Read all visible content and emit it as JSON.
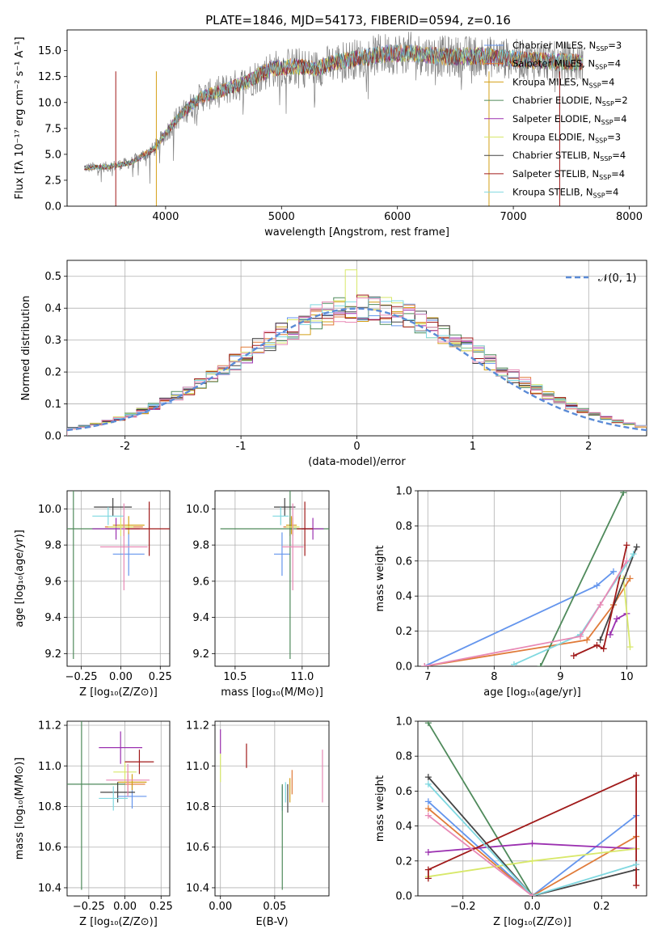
{
  "figure": {
    "title": "PLATE=1846, MJD=54173, FIBERID=0594, z=0.16"
  },
  "series": [
    {
      "key": "chab_miles",
      "label": "Chabrier MILES, N",
      "sub": "SSP",
      "suffix": "=3",
      "color": "#6495ed"
    },
    {
      "key": "salp_miles",
      "label": "Salpeter MILES, N",
      "sub": "SSP",
      "suffix": "=4",
      "color": "#e07b39"
    },
    {
      "key": "krou_miles",
      "label": "Kroupa MILES, N",
      "sub": "SSP",
      "suffix": "=4",
      "color": "#d4a017"
    },
    {
      "key": "chab_elodie",
      "label": "Chabrier ELODIE, N",
      "sub": "SSP",
      "suffix": "=2",
      "color": "#4f8a5b"
    },
    {
      "key": "salp_elodie",
      "label": "Salpeter ELODIE, N",
      "sub": "SSP",
      "suffix": "=4",
      "color": "#9b30b0"
    },
    {
      "key": "krou_elodie",
      "label": "Kroupa ELODIE, N",
      "sub": "SSP",
      "suffix": "=3",
      "color": "#d8e86a"
    },
    {
      "key": "chab_stelib",
      "label": "Chabrier STELIB, N",
      "sub": "SSP",
      "suffix": "=4",
      "color": "#444444"
    },
    {
      "key": "salp_stelib",
      "label": "Salpeter STELIB, N",
      "sub": "SSP",
      "suffix": "=4",
      "color": "#a01a1a"
    },
    {
      "key": "krou_stelib",
      "label": "Kroupa STELIB, N",
      "sub": "SSP",
      "suffix": "=4",
      "color": "#7fd8e0"
    }
  ],
  "chart_data": [
    {
      "id": "spectrum",
      "type": "line",
      "xlabel": "wavelength [Angstrom, rest frame]",
      "ylabel": "Flux [fλ 10⁻¹⁷ erg cm⁻² s⁻¹ A⁻¹]",
      "xlim": [
        3150,
        8150
      ],
      "ylim": [
        0,
        17
      ],
      "xticks": [
        4000,
        5000,
        6000,
        7000,
        8000
      ],
      "yticks": [
        0.0,
        2.5,
        5.0,
        7.5,
        10.0,
        12.5,
        15.0
      ],
      "x_data_range": [
        3300,
        7600
      ],
      "data_color": "#808080",
      "envelope": {
        "x": [
          3300,
          3500,
          3700,
          3900,
          4100,
          4300,
          4500,
          4700,
          4900,
          5100,
          5300,
          5500,
          5700,
          5900,
          6100,
          6300,
          6500,
          6700,
          6900,
          7100,
          7300,
          7500,
          7600
        ],
        "y": [
          3.7,
          3.8,
          4.2,
          5.5,
          8.5,
          10.5,
          11.2,
          12.0,
          13.2,
          13.5,
          13.3,
          14.0,
          14.3,
          14.7,
          14.8,
          14.5,
          14.4,
          14.5,
          14.3,
          14.1,
          14.0,
          13.9,
          13.8
        ]
      },
      "dropouts": [
        {
          "x": 3570,
          "key": "salp_stelib"
        },
        {
          "x": 3920,
          "key": "krou_miles"
        },
        {
          "x": 6790,
          "key": "krou_miles"
        },
        {
          "x": 7400,
          "key": "salp_stelib"
        }
      ]
    },
    {
      "id": "residuals",
      "type": "histogram",
      "xlabel": "(data-model)/error",
      "ylabel": "Normed distribution",
      "xlim": [
        -2.5,
        2.5
      ],
      "ylim": [
        0,
        0.55
      ],
      "xticks": [
        -2,
        -1,
        0,
        1,
        2
      ],
      "yticks": [
        0.0,
        0.1,
        0.2,
        0.3,
        0.4,
        0.5
      ],
      "bin_width": 0.1,
      "reference": {
        "label": "𝒩(0, 1)",
        "mean": 0,
        "sigma": 1,
        "color": "#5b8bd6"
      },
      "peak_bin": {
        "x": -0.05,
        "y": 0.52,
        "key": "krou_elodie"
      }
    },
    {
      "id": "age_vs_Z",
      "type": "errorbar",
      "xlabel": "Z [log₁₀(Z/Z⊙)]",
      "ylabel": "age  [log₁₀(age/yr)]",
      "xlim": [
        -0.34,
        0.31
      ],
      "ylim": [
        9.13,
        10.1
      ],
      "xticks": [
        -0.25,
        0.0,
        0.25
      ],
      "xticklabels": [
        "−0.25",
        "0.00",
        "0.25"
      ],
      "yticks": [
        9.2,
        9.4,
        9.6,
        9.8,
        10.0
      ],
      "points": [
        {
          "key": "chab_miles",
          "x": 0.05,
          "y": 9.75,
          "xerr": 0.1,
          "yerr": 0.12
        },
        {
          "key": "salp_miles",
          "x": 0.02,
          "y": 9.9,
          "xerr": 0.12,
          "yerr": 0.05
        },
        {
          "key": "krou_miles",
          "x": 0.05,
          "y": 9.91,
          "xerr": 0.1,
          "yerr": 0.05
        },
        {
          "key": "chab_elodie",
          "x": -0.3,
          "y": 9.89,
          "xerr": 0.3,
          "yerr": 0.72
        },
        {
          "key": "salp_elodie",
          "x": -0.03,
          "y": 9.89,
          "xerr": 0.15,
          "yerr": 0.06
        },
        {
          "key": "krou_elodie",
          "x": 0.0,
          "y": 9.9,
          "xerr": 0.08,
          "yerr": 0.05
        },
        {
          "key": "chab_stelib",
          "x": -0.05,
          "y": 10.01,
          "xerr": 0.12,
          "yerr": 0.05
        },
        {
          "key": "salp_stelib",
          "x": 0.18,
          "y": 9.89,
          "xerr": 0.15,
          "yerr": 0.15
        },
        {
          "key": "krou_stelib",
          "x": -0.08,
          "y": 9.96,
          "xerr": 0.1,
          "yerr": 0.05
        },
        {
          "key": "pink",
          "x": 0.02,
          "y": 9.79,
          "xerr": 0.15,
          "yerr": 0.24
        }
      ]
    },
    {
      "id": "age_vs_mass",
      "type": "errorbar",
      "xlabel": "mass [log₁₀(M/M⊙)]",
      "ylabel": "",
      "xlim": [
        10.35,
        11.2
      ],
      "ylim": [
        9.13,
        10.1
      ],
      "xticks": [
        10.5,
        11.0
      ],
      "xticklabels": [
        "10.5",
        "11.0"
      ],
      "yticks": [
        9.2,
        9.4,
        9.6,
        9.8,
        10.0
      ],
      "points": [
        {
          "key": "chab_miles",
          "x": 10.85,
          "y": 9.75,
          "xerr": 0.06,
          "yerr": 0.12
        },
        {
          "key": "salp_miles",
          "x": 10.91,
          "y": 9.9,
          "xerr": 0.05,
          "yerr": 0.05
        },
        {
          "key": "krou_miles",
          "x": 10.92,
          "y": 9.91,
          "xerr": 0.04,
          "yerr": 0.05
        },
        {
          "key": "chab_elodie",
          "x": 10.91,
          "y": 9.89,
          "xerr": 0.52,
          "yerr": 0.72
        },
        {
          "key": "salp_elodie",
          "x": 11.08,
          "y": 9.89,
          "xerr": 0.08,
          "yerr": 0.06
        },
        {
          "key": "krou_elodie",
          "x": 10.93,
          "y": 9.9,
          "xerr": 0.05,
          "yerr": 0.05
        },
        {
          "key": "chab_stelib",
          "x": 10.87,
          "y": 10.01,
          "xerr": 0.08,
          "yerr": 0.05
        },
        {
          "key": "salp_stelib",
          "x": 11.02,
          "y": 9.89,
          "xerr": 0.06,
          "yerr": 0.15
        },
        {
          "key": "krou_stelib",
          "x": 10.84,
          "y": 9.96,
          "xerr": 0.06,
          "yerr": 0.05
        },
        {
          "key": "pink",
          "x": 10.93,
          "y": 9.79,
          "xerr": 0.08,
          "yerr": 0.24
        }
      ]
    },
    {
      "id": "weight_vs_age",
      "type": "line",
      "xlabel": "age  [log₁₀(age/yr)]",
      "ylabel": "mass weight",
      "xlim": [
        6.85,
        10.3
      ],
      "ylim": [
        0,
        1.0
      ],
      "xticks": [
        7,
        8,
        9,
        10
      ],
      "yticks": [
        0.0,
        0.2,
        0.4,
        0.6,
        0.8,
        1.0
      ],
      "series": [
        {
          "key": "chab_miles",
          "x": [
            6.95,
            9.55,
            9.8
          ],
          "y": [
            0.0,
            0.46,
            0.54
          ]
        },
        {
          "key": "salp_miles",
          "x": [
            6.95,
            9.4,
            9.8,
            10.05
          ],
          "y": [
            0.0,
            0.15,
            0.35,
            0.5
          ]
        },
        {
          "key": "chab_elodie",
          "x": [
            8.7,
            9.95
          ],
          "y": [
            0.0,
            0.99
          ]
        },
        {
          "key": "salp_elodie",
          "x": [
            9.75,
            9.85,
            10.0
          ],
          "y": [
            0.18,
            0.27,
            0.3
          ]
        },
        {
          "key": "krou_elodie",
          "x": [
            9.95,
            10.05
          ],
          "y": [
            0.5,
            0.11
          ]
        },
        {
          "key": "chab_stelib",
          "x": [
            9.6,
            10.15
          ],
          "y": [
            0.15,
            0.68
          ]
        },
        {
          "key": "salp_stelib",
          "x": [
            9.2,
            9.55,
            9.65,
            10.0
          ],
          "y": [
            0.06,
            0.12,
            0.1,
            0.69
          ]
        },
        {
          "key": "krou_stelib",
          "x": [
            8.3,
            9.3,
            10.1
          ],
          "y": [
            0.01,
            0.18,
            0.64
          ]
        },
        {
          "key": "pink",
          "x": [
            6.95,
            9.3,
            9.6,
            10.0
          ],
          "y": [
            0.0,
            0.17,
            0.35,
            0.6
          ]
        }
      ]
    },
    {
      "id": "mass_vs_Z",
      "type": "errorbar",
      "xlabel": "Z [log₁₀(Z/Z⊙)]",
      "ylabel": "mass [log₁₀(M/M⊙)]",
      "xlim": [
        -0.4,
        0.31
      ],
      "ylim": [
        10.36,
        11.22
      ],
      "xticks": [
        -0.25,
        0.0,
        0.25
      ],
      "xticklabels": [
        "−0.25",
        "0.00",
        "0.25"
      ],
      "yticks": [
        10.4,
        10.6,
        10.8,
        11.0,
        11.2
      ],
      "points": [
        {
          "key": "chab_miles",
          "x": 0.05,
          "y": 10.85,
          "xerr": 0.1,
          "yerr": 0.06
        },
        {
          "key": "salp_miles",
          "x": 0.02,
          "y": 10.91,
          "xerr": 0.12,
          "yerr": 0.05
        },
        {
          "key": "krou_miles",
          "x": 0.05,
          "y": 10.92,
          "xerr": 0.1,
          "yerr": 0.04
        },
        {
          "key": "chab_elodie",
          "x": -0.3,
          "y": 10.91,
          "xerr": 0.3,
          "yerr": 0.52
        },
        {
          "key": "salp_elodie",
          "x": -0.03,
          "y": 11.09,
          "xerr": 0.15,
          "yerr": 0.08
        },
        {
          "key": "krou_elodie",
          "x": 0.0,
          "y": 10.97,
          "xerr": 0.08,
          "yerr": 0.05
        },
        {
          "key": "chab_stelib",
          "x": -0.05,
          "y": 10.87,
          "xerr": 0.12,
          "yerr": 0.05
        },
        {
          "key": "salp_stelib",
          "x": 0.1,
          "y": 11.02,
          "xerr": 0.1,
          "yerr": 0.06
        },
        {
          "key": "krou_stelib",
          "x": -0.08,
          "y": 10.84,
          "xerr": 0.1,
          "yerr": 0.06
        },
        {
          "key": "pink",
          "x": 0.02,
          "y": 10.93,
          "xerr": 0.15,
          "yerr": 0.08
        }
      ]
    },
    {
      "id": "mass_vs_ebv",
      "type": "errorbar",
      "xlabel": "E(B-V)",
      "ylabel": "",
      "xlim": [
        -0.005,
        0.1
      ],
      "ylim": [
        10.36,
        11.22
      ],
      "xticks": [
        0.0,
        0.05
      ],
      "xticklabels": [
        "0.00",
        "0.05"
      ],
      "yticks": [
        10.4,
        10.6,
        10.8,
        11.0,
        11.2
      ],
      "points": [
        {
          "key": "chab_miles",
          "x": 0.057,
          "y": 10.84,
          "xerr": 0,
          "yerr": 0.06
        },
        {
          "key": "salp_miles",
          "x": 0.066,
          "y": 10.92,
          "xerr": 0,
          "yerr": 0.06
        },
        {
          "key": "krou_miles",
          "x": 0.064,
          "y": 10.88,
          "xerr": 0,
          "yerr": 0.06
        },
        {
          "key": "chab_elodie",
          "x": 0.057,
          "y": 10.65,
          "xerr": 0,
          "yerr": 0.26
        },
        {
          "key": "salp_elodie",
          "x": 0.0,
          "y": 11.12,
          "xerr": 0,
          "yerr": 0.06
        },
        {
          "key": "krou_elodie",
          "x": 0.0,
          "y": 10.99,
          "xerr": 0,
          "yerr": 0.07
        },
        {
          "key": "chab_stelib",
          "x": 0.062,
          "y": 10.84,
          "xerr": 0,
          "yerr": 0.07
        },
        {
          "key": "salp_stelib",
          "x": 0.024,
          "y": 11.05,
          "xerr": 0,
          "yerr": 0.06
        },
        {
          "key": "krou_stelib",
          "x": 0.06,
          "y": 10.87,
          "xerr": 0,
          "yerr": 0.05
        },
        {
          "key": "pink",
          "x": 0.094,
          "y": 10.95,
          "xerr": 0,
          "yerr": 0.13
        }
      ]
    },
    {
      "id": "weight_vs_Z",
      "type": "line",
      "xlabel": "Z [log₁₀(Z/Z⊙)]",
      "ylabel": "mass weight",
      "xlim": [
        -0.33,
        0.33
      ],
      "ylim": [
        0,
        1.0
      ],
      "xticks": [
        -0.2,
        0.0,
        0.2
      ],
      "xticklabels": [
        "−0.2",
        "0.0",
        "0.2"
      ],
      "yticks": [
        0.0,
        0.2,
        0.4,
        0.6,
        0.8,
        1.0
      ],
      "series": [
        {
          "key": "chab_miles",
          "x": [
            -0.3,
            0.0,
            0.3
          ],
          "y": [
            0.54,
            0.0,
            0.46
          ]
        },
        {
          "key": "salp_miles",
          "x": [
            -0.3,
            0.0,
            0.3
          ],
          "y": [
            0.5,
            0.0,
            0.34
          ]
        },
        {
          "key": "chab_elodie",
          "x": [
            -0.3,
            0.0
          ],
          "y": [
            0.99,
            0.0
          ]
        },
        {
          "key": "salp_elodie",
          "x": [
            -0.3,
            0.0,
            0.3
          ],
          "y": [
            0.25,
            0.3,
            0.27
          ]
        },
        {
          "key": "krou_elodie",
          "x": [
            -0.3,
            0.0,
            0.3
          ],
          "y": [
            0.11,
            0.2,
            0.27
          ]
        },
        {
          "key": "chab_stelib",
          "x": [
            -0.3,
            0.0,
            0.3
          ],
          "y": [
            0.68,
            0.0,
            0.15
          ]
        },
        {
          "key": "salp_stelib",
          "x": [
            -0.3,
            -0.3,
            0.3,
            0.3
          ],
          "y": [
            0.1,
            0.15,
            0.69,
            0.06
          ]
        },
        {
          "key": "krou_stelib",
          "x": [
            -0.3,
            0.0,
            0.3
          ],
          "y": [
            0.64,
            0.0,
            0.18
          ]
        },
        {
          "key": "pink",
          "x": [
            -0.3,
            0.0
          ],
          "y": [
            0.46,
            0.0
          ]
        }
      ]
    }
  ],
  "extra_colors": {
    "pink": "#e889b5"
  }
}
